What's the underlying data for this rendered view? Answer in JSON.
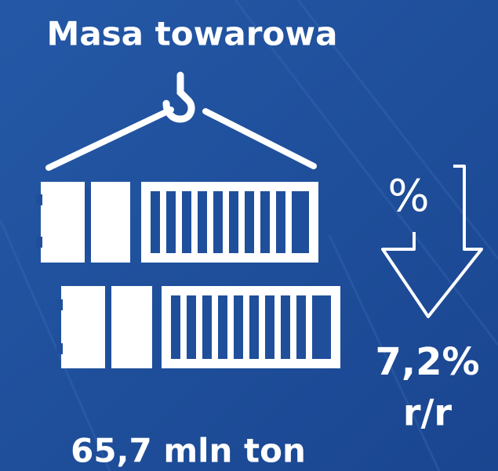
{
  "title": "Masa towarowa",
  "total": "65,7 mln ton",
  "change": {
    "icon": "%",
    "value": "7,2%",
    "period": "r/r"
  }
}
